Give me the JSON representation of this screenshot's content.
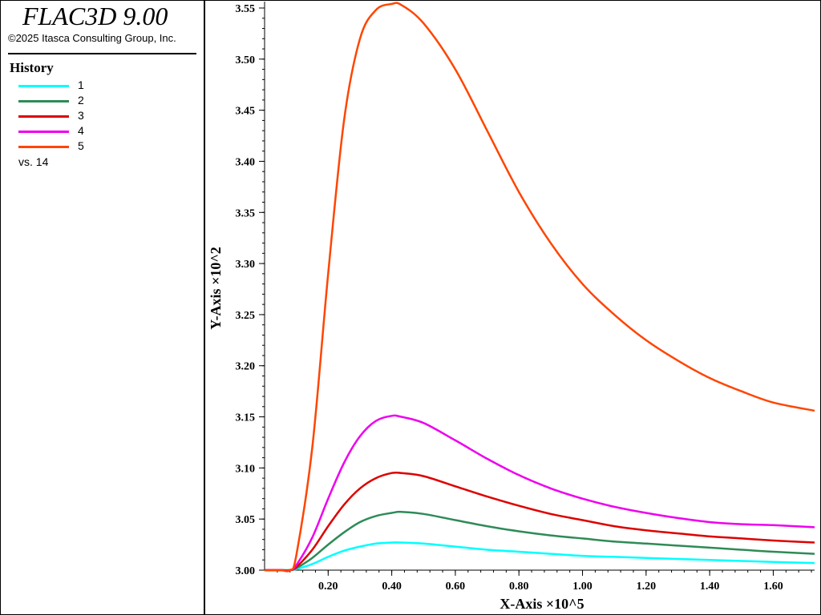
{
  "app": {
    "title": "FLAC3D 9.00",
    "copyright": "©2025 Itasca Consulting Group, Inc."
  },
  "legend": {
    "heading": "History",
    "items": [
      {
        "label": "1",
        "color": "#00ffff"
      },
      {
        "label": "2",
        "color": "#2e8b57"
      },
      {
        "label": "3",
        "color": "#dd0000"
      },
      {
        "label": "4",
        "color": "#ee00ee"
      },
      {
        "label": "5",
        "color": "#ff4500"
      }
    ],
    "vs_label": "vs. 14"
  },
  "chart_data": {
    "type": "line",
    "xlabel": "X-Axis ×10^5",
    "ylabel": "Y-Axis ×10^2",
    "xlim": [
      0,
      1.73
    ],
    "ylim": [
      3.0,
      3.55
    ],
    "x_ticks": [
      "0.20",
      "0.40",
      "0.60",
      "0.80",
      "1.00",
      "1.20",
      "1.40",
      "1.60"
    ],
    "x_tick_values": [
      0.2,
      0.4,
      0.6,
      0.8,
      1.0,
      1.2,
      1.4,
      1.6
    ],
    "y_ticks": [
      "3.00",
      "3.05",
      "3.10",
      "3.15",
      "3.20",
      "3.25",
      "3.30",
      "3.35",
      "3.40",
      "3.45",
      "3.50",
      "3.55"
    ],
    "y_tick_values": [
      3.0,
      3.05,
      3.1,
      3.15,
      3.2,
      3.25,
      3.3,
      3.35,
      3.4,
      3.45,
      3.5,
      3.55
    ],
    "grid": false,
    "legend_position": "left-panel",
    "x": [
      0.0,
      0.05,
      0.08,
      0.1,
      0.15,
      0.2,
      0.25,
      0.3,
      0.35,
      0.4,
      0.43,
      0.5,
      0.6,
      0.7,
      0.8,
      0.9,
      1.0,
      1.1,
      1.2,
      1.3,
      1.4,
      1.5,
      1.6,
      1.73
    ],
    "series": [
      {
        "name": "1",
        "color": "#00ffff",
        "values": [
          3.0,
          3.0,
          3.0,
          3.001,
          3.006,
          3.013,
          3.019,
          3.023,
          3.026,
          3.027,
          3.027,
          3.026,
          3.023,
          3.02,
          3.018,
          3.016,
          3.014,
          3.013,
          3.012,
          3.011,
          3.01,
          3.009,
          3.008,
          3.007
        ]
      },
      {
        "name": "2",
        "color": "#2e8b57",
        "values": [
          3.0,
          3.0,
          3.0,
          3.002,
          3.012,
          3.025,
          3.037,
          3.047,
          3.053,
          3.056,
          3.057,
          3.055,
          3.049,
          3.043,
          3.038,
          3.034,
          3.031,
          3.028,
          3.026,
          3.024,
          3.022,
          3.02,
          3.018,
          3.016
        ]
      },
      {
        "name": "3",
        "color": "#dd0000",
        "values": [
          3.0,
          3.0,
          3.0,
          3.003,
          3.02,
          3.043,
          3.064,
          3.08,
          3.09,
          3.095,
          3.095,
          3.092,
          3.082,
          3.072,
          3.063,
          3.055,
          3.049,
          3.043,
          3.039,
          3.036,
          3.033,
          3.031,
          3.029,
          3.027
        ]
      },
      {
        "name": "4",
        "color": "#ee00ee",
        "values": [
          3.0,
          3.0,
          3.0,
          3.005,
          3.032,
          3.07,
          3.105,
          3.131,
          3.146,
          3.151,
          3.15,
          3.144,
          3.127,
          3.109,
          3.093,
          3.08,
          3.07,
          3.062,
          3.056,
          3.051,
          3.047,
          3.045,
          3.044,
          3.042
        ]
      },
      {
        "name": "5",
        "color": "#ff4500",
        "values": [
          3.0,
          3.0,
          3.0,
          3.015,
          3.12,
          3.29,
          3.44,
          3.52,
          3.548,
          3.554,
          3.553,
          3.535,
          3.49,
          3.43,
          3.37,
          3.32,
          3.28,
          3.25,
          3.225,
          3.205,
          3.188,
          3.175,
          3.164,
          3.156
        ]
      }
    ]
  }
}
